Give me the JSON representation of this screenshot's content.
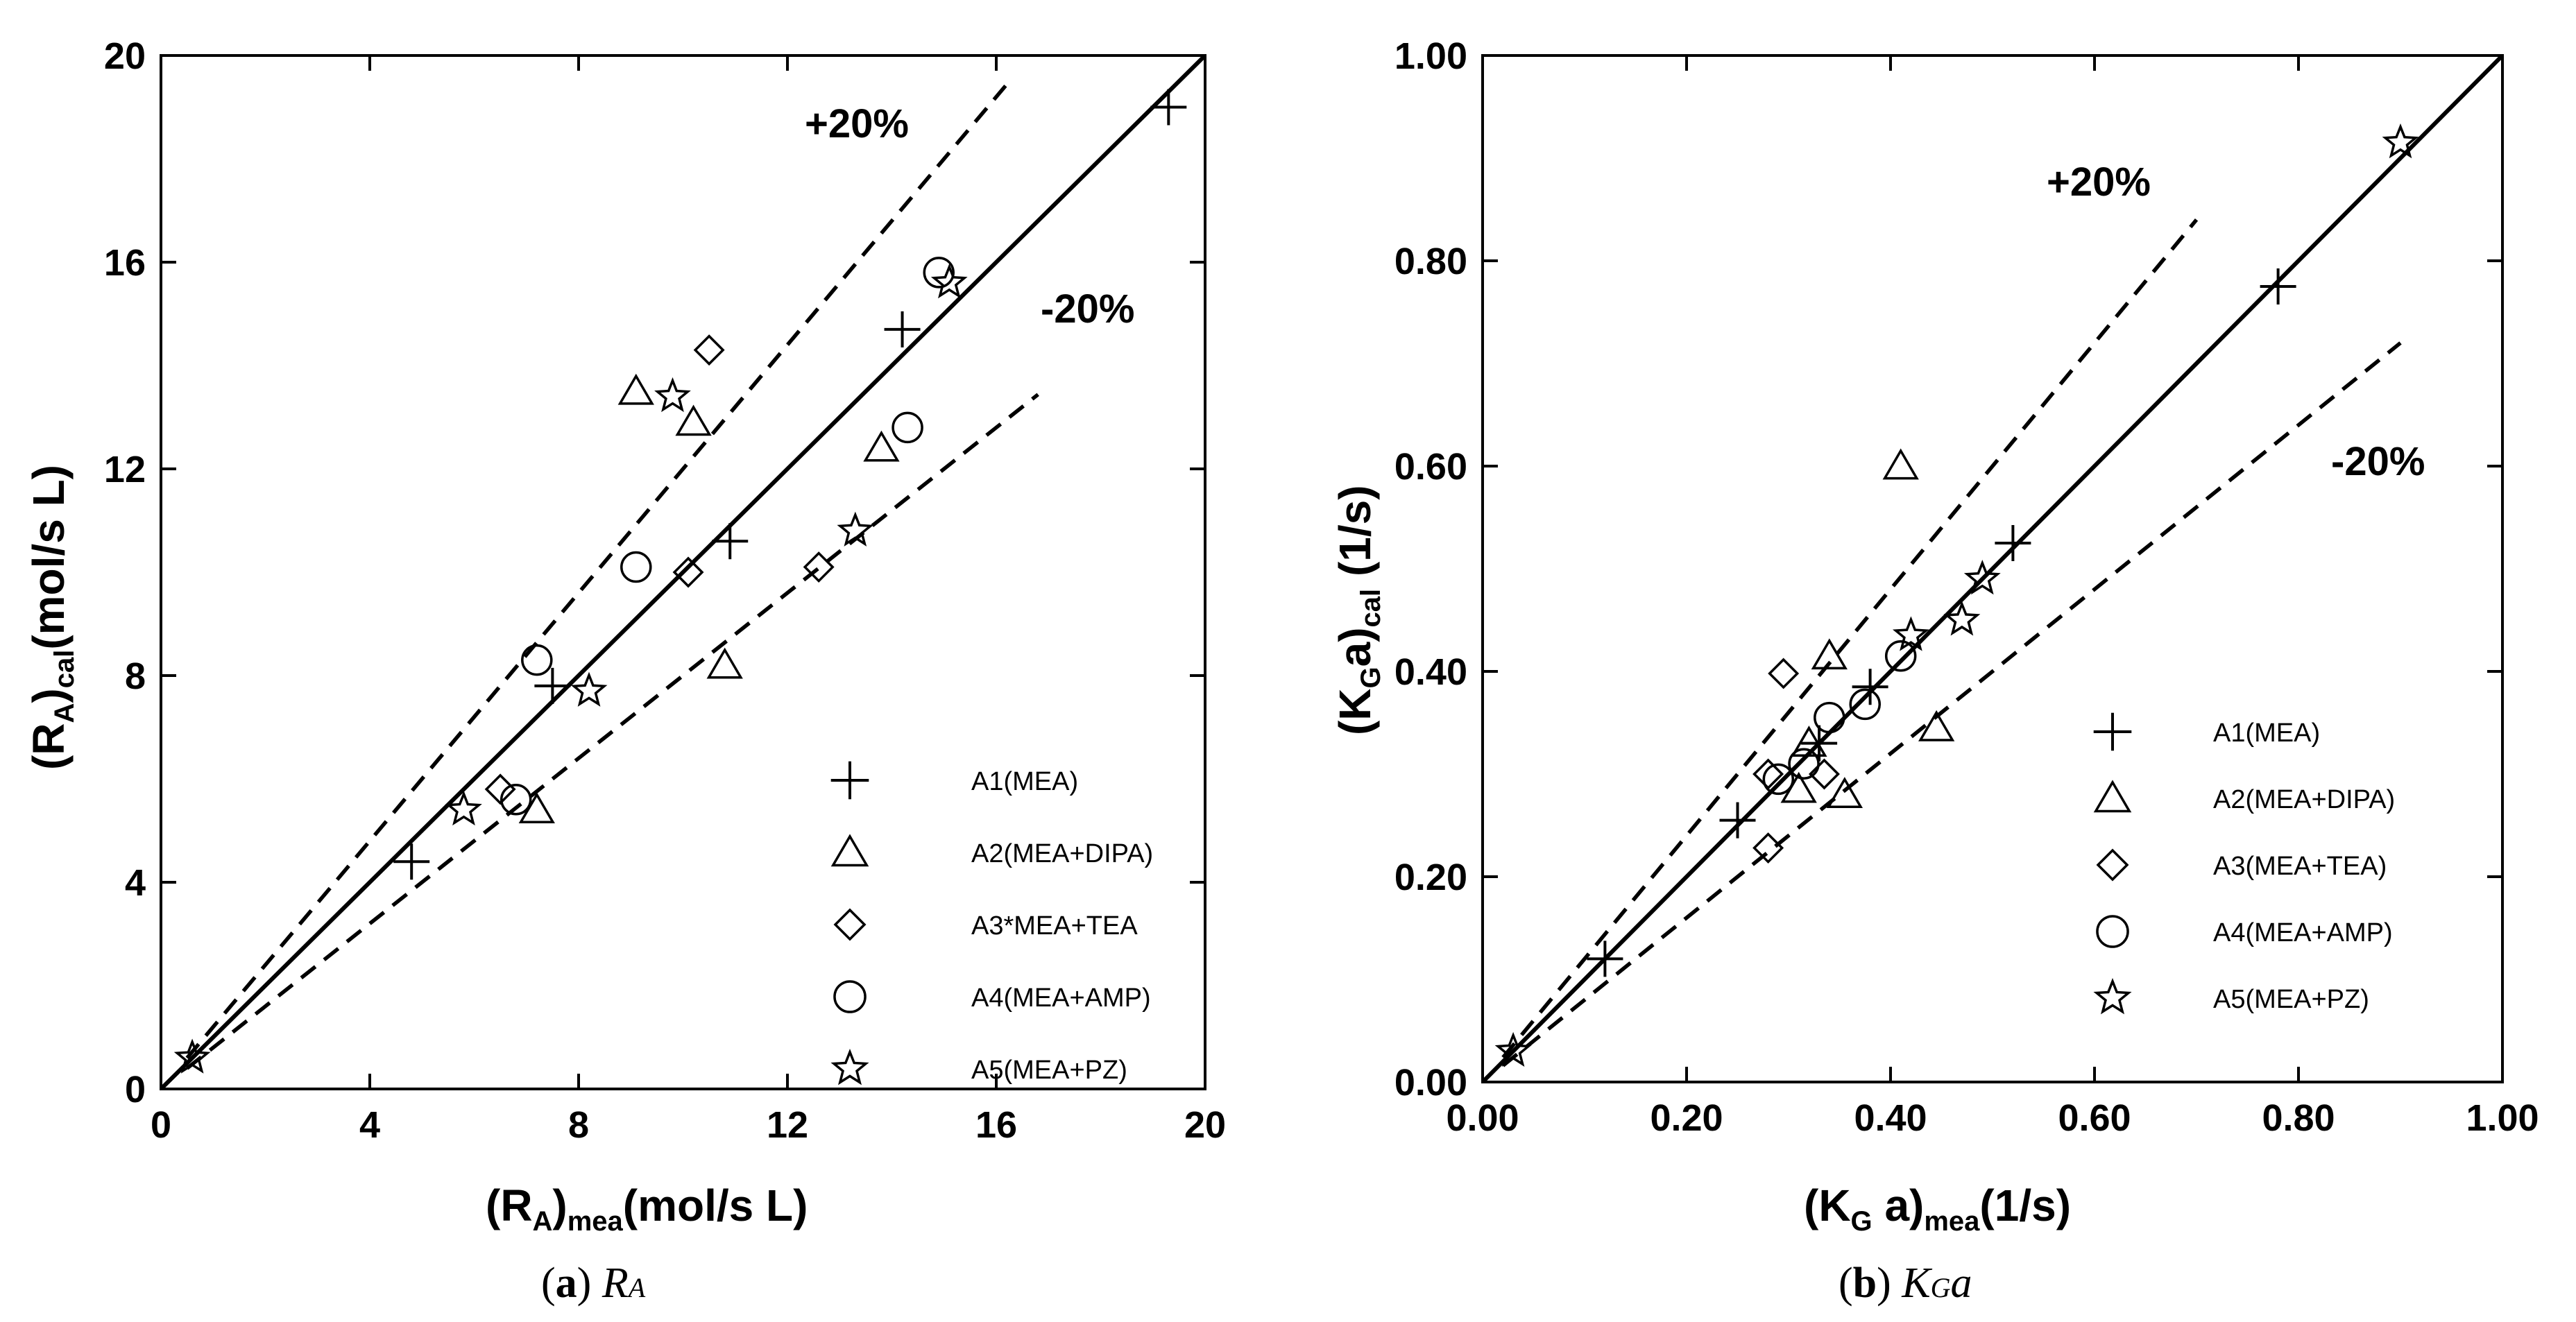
{
  "chart_data": [
    {
      "type": "scatter",
      "panel": "a",
      "caption": {
        "letter": "a",
        "symbol": "R",
        "symbol_sub": "A"
      },
      "xlabel": {
        "main": "(R",
        "sub1": "A",
        "close": ")",
        "sub2": "mea",
        "unit": "(mol/s L)"
      },
      "ylabel": {
        "main": "(R",
        "sub1": "A",
        "close": ")",
        "sub2": "cal",
        "unit": "(mol/s L)"
      },
      "xlim": [
        0,
        20
      ],
      "ylim": [
        0,
        20
      ],
      "xticks": [
        "0",
        "4",
        "8",
        "12",
        "16",
        "20"
      ],
      "yticks": [
        "0",
        "4",
        "8",
        "12",
        "16",
        "20"
      ],
      "lines": [
        {
          "name": "parity",
          "style": "solid",
          "slope": 1.0,
          "x_range": [
            0,
            20
          ]
        },
        {
          "name": "+20%",
          "label": "+20%",
          "style": "dashed",
          "slope": 1.2,
          "x_range": [
            0.5,
            16.2
          ]
        },
        {
          "name": "-20%",
          "label": "-20%",
          "style": "dashed",
          "slope": 0.8,
          "x_range": [
            0.5,
            16.8
          ]
        }
      ],
      "legend_position": "bottom-right",
      "series": [
        {
          "name": "A1(MEA)",
          "marker": "plus",
          "points": [
            [
              4.8,
              4.4
            ],
            [
              7.5,
              7.8
            ],
            [
              10.9,
              10.6
            ],
            [
              14.2,
              14.7
            ],
            [
              19.3,
              19.0
            ]
          ]
        },
        {
          "name": "A2(MEA+DIPA)",
          "marker": "triangle",
          "points": [
            [
              7.2,
              5.4
            ],
            [
              9.1,
              13.5
            ],
            [
              10.2,
              12.9
            ],
            [
              13.8,
              12.4
            ],
            [
              10.8,
              8.2
            ]
          ]
        },
        {
          "name": "A3*MEA+TEA",
          "marker": "diamond",
          "points": [
            [
              6.5,
              5.8
            ],
            [
              10.1,
              10.0
            ],
            [
              10.5,
              14.3
            ],
            [
              12.6,
              10.1
            ]
          ]
        },
        {
          "name": "A4(MEA+AMP)",
          "marker": "circle",
          "points": [
            [
              6.8,
              5.6
            ],
            [
              7.2,
              8.3
            ],
            [
              9.1,
              10.1
            ],
            [
              14.3,
              12.8
            ],
            [
              14.9,
              15.8
            ]
          ]
        },
        {
          "name": "A5(MEA+PZ)",
          "marker": "star",
          "points": [
            [
              0.6,
              0.6
            ],
            [
              5.8,
              5.4
            ],
            [
              8.2,
              7.7
            ],
            [
              9.8,
              13.4
            ],
            [
              13.3,
              10.8
            ],
            [
              15.1,
              15.6
            ]
          ]
        }
      ]
    },
    {
      "type": "scatter",
      "panel": "b",
      "caption": {
        "letter": "b",
        "symbol": "K",
        "symbol_sub": "G",
        "symbol_tail": "a"
      },
      "xlabel": {
        "main": "(K",
        "sub1": "G",
        "close": " a)",
        "sub2": "mea",
        "unit": "(1/s)"
      },
      "ylabel": {
        "main": "(K",
        "sub1": "G",
        "close": "a)",
        "sub2": "cal",
        "unit": "(1/s)"
      },
      "xlim": [
        0,
        1
      ],
      "ylim": [
        0,
        1
      ],
      "xticks": [
        "0.00",
        "0.20",
        "0.40",
        "0.60",
        "0.80",
        "1.00"
      ],
      "yticks": [
        "0.00",
        "0.20",
        "0.40",
        "0.60",
        "0.80",
        "1.00"
      ],
      "lines": [
        {
          "name": "parity",
          "style": "solid",
          "slope": 1.0,
          "x_range": [
            0,
            1
          ]
        },
        {
          "name": "+20%",
          "label": "+20%",
          "style": "dashed",
          "slope": 1.2,
          "x_range": [
            0.02,
            0.7
          ]
        },
        {
          "name": "-20%",
          "label": "-20%",
          "style": "dashed",
          "slope": 0.8,
          "x_range": [
            0.02,
            0.9
          ]
        }
      ],
      "legend_position": "bottom-right",
      "series": [
        {
          "name": "A1(MEA)",
          "marker": "plus",
          "points": [
            [
              0.12,
              0.12
            ],
            [
              0.25,
              0.255
            ],
            [
              0.33,
              0.33
            ],
            [
              0.38,
              0.385
            ],
            [
              0.52,
              0.525
            ],
            [
              0.78,
              0.775
            ]
          ]
        },
        {
          "name": "A2(MEA+DIPA)",
          "marker": "triangle",
          "points": [
            [
              0.31,
              0.285
            ],
            [
              0.355,
              0.28
            ],
            [
              0.34,
              0.415
            ],
            [
              0.41,
              0.6
            ],
            [
              0.445,
              0.345
            ],
            [
              0.32,
              0.33
            ]
          ]
        },
        {
          "name": "A3(MEA+TEA)",
          "marker": "diamond",
          "points": [
            [
              0.28,
              0.228
            ],
            [
              0.28,
              0.3
            ],
            [
              0.335,
              0.3
            ],
            [
              0.295,
              0.398
            ]
          ]
        },
        {
          "name": "A4(MEA+AMP)",
          "marker": "circle",
          "points": [
            [
              0.29,
              0.295
            ],
            [
              0.315,
              0.31
            ],
            [
              0.34,
              0.355
            ],
            [
              0.375,
              0.368
            ],
            [
              0.41,
              0.415
            ]
          ]
        },
        {
          "name": "A5(MEA+PZ)",
          "marker": "star",
          "points": [
            [
              0.03,
              0.03
            ],
            [
              0.42,
              0.435
            ],
            [
              0.47,
              0.45
            ],
            [
              0.49,
              0.49
            ],
            [
              0.9,
              0.915
            ]
          ]
        }
      ]
    }
  ]
}
